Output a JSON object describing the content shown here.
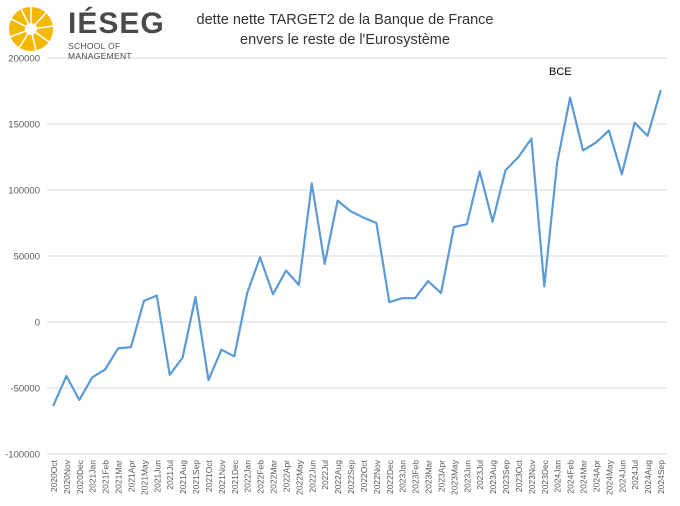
{
  "brand": {
    "name": "IÉSEG",
    "tagline": "SCHOOL OF MANAGEMENT",
    "logo_color": "#f5b800"
  },
  "chart_data": {
    "type": "line",
    "title_line1": "dette nette TARGET2 de la Banque de France",
    "title_line2": "envers le reste de l'Eurosystème",
    "annotation": "BCE",
    "line_color": "#5b9bd5",
    "grid": true,
    "ylim": [
      -100000,
      200000
    ],
    "yticks": [
      "-100000",
      "-50000",
      "0",
      "50000",
      "100000",
      "150000",
      "200000"
    ],
    "categories": [
      "2020Oct",
      "2020Nov",
      "2020Dec",
      "2021Jan",
      "2021Feb",
      "2021Mar",
      "2021Apr",
      "2021May",
      "2021Jun",
      "2021Jul",
      "2021Aug",
      "2021Sep",
      "2021Oct",
      "2021Nov",
      "2021Dec",
      "2022Jan",
      "2022Feb",
      "2022Mar",
      "2022Apr",
      "2022May",
      "2022Jun",
      "2022Jul",
      "2022Aug",
      "2022Sep",
      "2022Oct",
      "2022Nov",
      "2022Dec",
      "2023Jan",
      "2023Feb",
      "2023Mar",
      "2023Apr",
      "2023May",
      "2023Jun",
      "2023Jul",
      "2023Aug",
      "2023Sep",
      "2023Oct",
      "2023Nov",
      "2023Dec",
      "2024Jan",
      "2024Feb",
      "2024Mar",
      "2024Apr",
      "2024May",
      "2024Jun",
      "2024Jul",
      "2024Aug",
      "2024Sep"
    ],
    "series": [
      {
        "name": "dette nette TARGET2",
        "values": [
          -63000,
          -41000,
          -59000,
          -42000,
          -36000,
          -20000,
          -19000,
          16000,
          20000,
          -40000,
          -27000,
          19000,
          -44000,
          -21000,
          -26000,
          22000,
          49000,
          21000,
          39000,
          28000,
          105000,
          44000,
          92000,
          84000,
          79000,
          75000,
          15000,
          18000,
          18000,
          31000,
          22000,
          72000,
          74000,
          114000,
          76000,
          115000,
          125000,
          139000,
          27000,
          121000,
          170000,
          130000,
          136000,
          145000,
          112000,
          151000,
          141000,
          175000
        ]
      }
    ]
  }
}
